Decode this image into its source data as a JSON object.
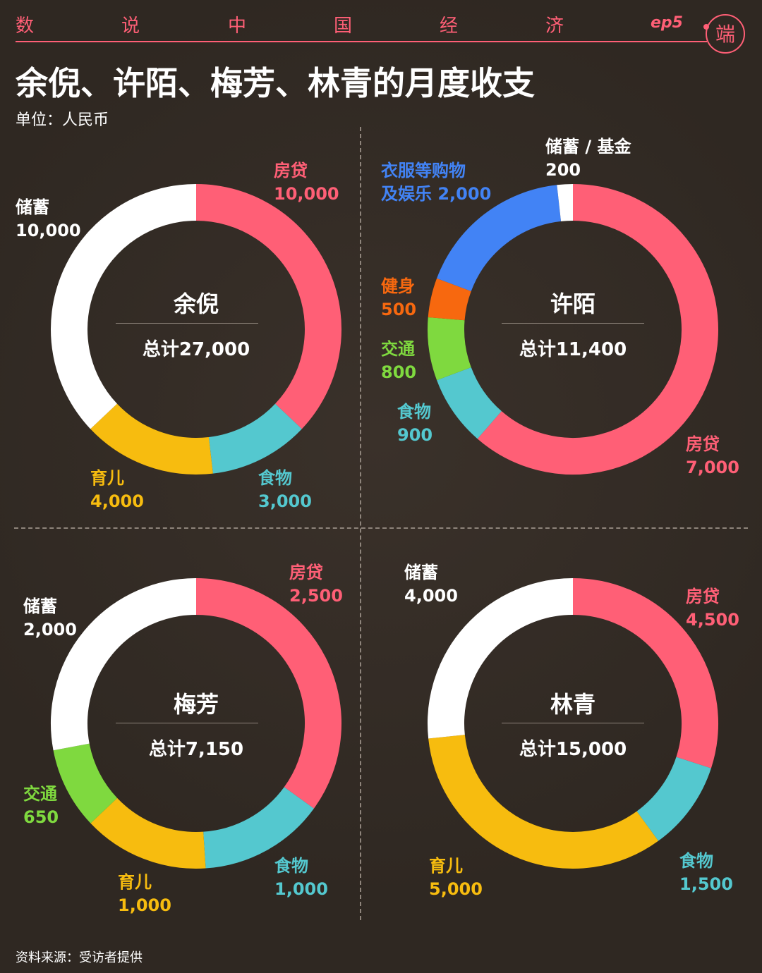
{
  "header": {
    "series_chars": [
      "数",
      "说",
      "中",
      "国",
      "经",
      "济"
    ],
    "episode": "ep5",
    "title": "余倪、许陌、梅芳、林青的月度收支",
    "unit": "单位：人民币",
    "logo_glyph": "端"
  },
  "colors": {
    "housing": "#ff5f76",
    "food": "#54c8cf",
    "childcare": "#f7bc0f",
    "savings": "#ffffff",
    "transport": "#7fd93f",
    "fitness": "#f7680f",
    "shopping": "#4283f5",
    "brand": "#ff5f76",
    "background": "#2f2822"
  },
  "chart_data": [
    {
      "type": "pie",
      "name": "余倪",
      "total_label": "总计27,000",
      "slices": [
        {
          "label": "房贷",
          "value": 10000,
          "value_label": "10,000",
          "color": "#ff5f76"
        },
        {
          "label": "食物",
          "value": 3000,
          "value_label": "3,000",
          "color": "#54c8cf"
        },
        {
          "label": "育儿",
          "value": 4000,
          "value_label": "4,000",
          "color": "#f7bc0f"
        },
        {
          "label": "储蓄",
          "value": 10000,
          "value_label": "10,000",
          "color": "#ffffff"
        }
      ]
    },
    {
      "type": "pie",
      "name": "许陌",
      "total_label": "总计11,400",
      "slices": [
        {
          "label": "房贷",
          "value": 7000,
          "value_label": "7,000",
          "color": "#ff5f76"
        },
        {
          "label": "食物",
          "value": 900,
          "value_label": "900",
          "color": "#54c8cf"
        },
        {
          "label": "交通",
          "value": 800,
          "value_label": "800",
          "color": "#7fd93f"
        },
        {
          "label": "健身",
          "value": 500,
          "value_label": "500",
          "color": "#f7680f"
        },
        {
          "label": "衣服等购物及娱乐",
          "label_lines": [
            "衣服等购物",
            "及娱乐 2,000"
          ],
          "value": 2000,
          "value_label": "",
          "color": "#4283f5"
        },
        {
          "label": "储蓄 / 基金",
          "value": 200,
          "value_label": "200",
          "color": "#ffffff"
        }
      ]
    },
    {
      "type": "pie",
      "name": "梅芳",
      "total_label": "总计7,150",
      "slices": [
        {
          "label": "房贷",
          "value": 2500,
          "value_label": "2,500",
          "color": "#ff5f76"
        },
        {
          "label": "食物",
          "value": 1000,
          "value_label": "1,000",
          "color": "#54c8cf"
        },
        {
          "label": "育儿",
          "value": 1000,
          "value_label": "1,000",
          "color": "#f7bc0f"
        },
        {
          "label": "交通",
          "value": 650,
          "value_label": "650",
          "color": "#7fd93f"
        },
        {
          "label": "储蓄",
          "value": 2000,
          "value_label": "2,000",
          "color": "#ffffff"
        }
      ]
    },
    {
      "type": "pie",
      "name": "林青",
      "total_label": "总计15,000",
      "slices": [
        {
          "label": "房贷",
          "value": 4500,
          "value_label": "4,500",
          "color": "#ff5f76"
        },
        {
          "label": "食物",
          "value": 1500,
          "value_label": "1,500",
          "color": "#54c8cf"
        },
        {
          "label": "育儿",
          "value": 5000,
          "value_label": "5,000",
          "color": "#f7bc0f"
        },
        {
          "label": "储蓄",
          "value": 4000,
          "value_label": "4,000",
          "color": "#ffffff"
        }
      ]
    }
  ],
  "footer": {
    "source": "资料来源：受访者提供"
  }
}
